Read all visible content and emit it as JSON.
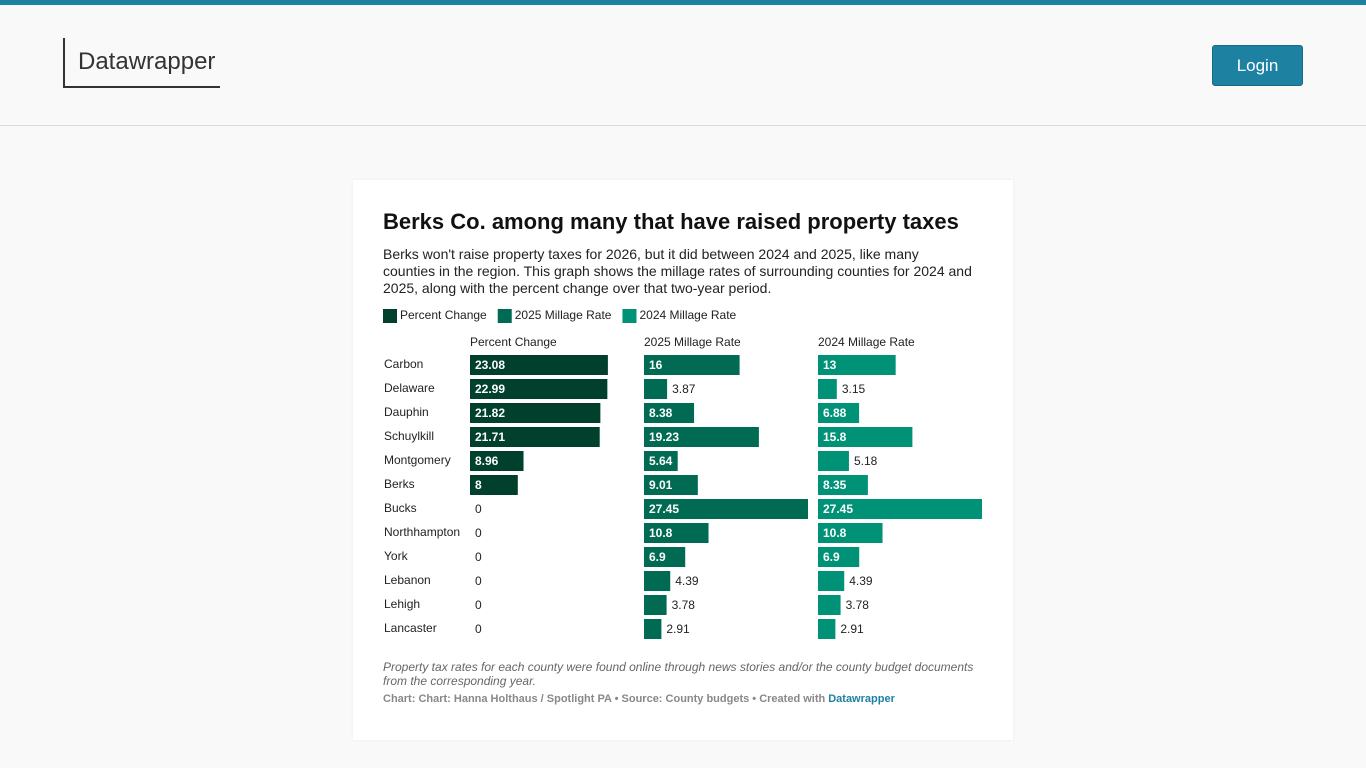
{
  "header": {
    "logo": "Datawrapper",
    "login": "Login"
  },
  "chart_data": {
    "type": "split-bar",
    "title": "Berks Co. among many that have raised property taxes",
    "subtitle": "Berks won't raise property taxes for 2026, but it did between 2024 and 2025, like many counties in the region. This graph shows the millage rates of surrounding counties for 2024 and 2025, along with the percent change over that two-year period.",
    "categories": [
      "Carbon",
      "Delaware",
      "Dauphin",
      "Schuylkill",
      "Montgomery",
      "Berks",
      "Bucks",
      "Northhampton",
      "York",
      "Lebanon",
      "Lehigh",
      "Lancaster"
    ],
    "series": [
      {
        "name": "Percent Change",
        "color": "#00402d",
        "values": [
          23.08,
          22.99,
          21.82,
          21.71,
          8.96,
          8,
          0,
          0,
          0,
          0,
          0,
          0
        ]
      },
      {
        "name": "2025 Millage Rate",
        "color": "#006b52",
        "values": [
          16,
          3.87,
          8.38,
          19.23,
          5.64,
          9.01,
          27.45,
          10.8,
          6.9,
          4.39,
          3.78,
          2.91
        ]
      },
      {
        "name": "2024 Millage Rate",
        "color": "#009277",
        "values": [
          13,
          3.15,
          6.88,
          15.8,
          5.18,
          8.35,
          27.45,
          10.8,
          6.9,
          4.39,
          3.78,
          2.91
        ]
      }
    ],
    "notes": "Property tax rates for each county were found online through news stories and/or the county budget documents from the corresponding year.",
    "byline": "Chart: Chart: Hanna Holthaus / Spotlight PA • Source: County budgets • Created with",
    "byline_link": "Datawrapper"
  }
}
